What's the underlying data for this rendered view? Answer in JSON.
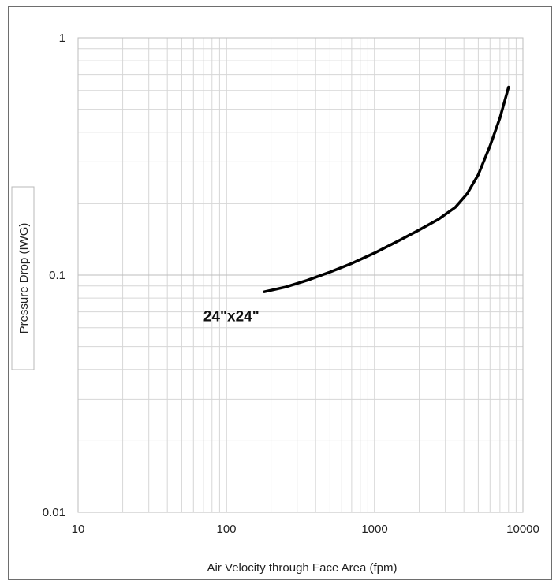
{
  "chart_data": {
    "type": "line",
    "title": "",
    "xlabel": "Air Velocity through Face Area  (fpm)",
    "ylabel": "Pressure Drop  (IWG)",
    "x_scale": "log",
    "y_scale": "log",
    "xlim": [
      10,
      10000
    ],
    "ylim": [
      0.01,
      1
    ],
    "x_ticks": [
      "10",
      "100",
      "1000",
      "10000"
    ],
    "y_ticks": [
      "0.01",
      "0.1",
      "1"
    ],
    "grid": true,
    "legend": "none",
    "series": [
      {
        "x": [
          180,
          250,
          350,
          500,
          700,
          1000,
          1500,
          2000,
          2700,
          3500,
          4200,
          5000,
          6000,
          7000,
          8000
        ],
        "y": [
          0.085,
          0.089,
          0.095,
          0.103,
          0.112,
          0.124,
          0.141,
          0.155,
          0.172,
          0.193,
          0.22,
          0.265,
          0.35,
          0.46,
          0.62
        ],
        "color": "#000000"
      }
    ],
    "annotations": [
      {
        "text": "24\"x24\"",
        "x": 70,
        "y": 0.064
      }
    ]
  }
}
